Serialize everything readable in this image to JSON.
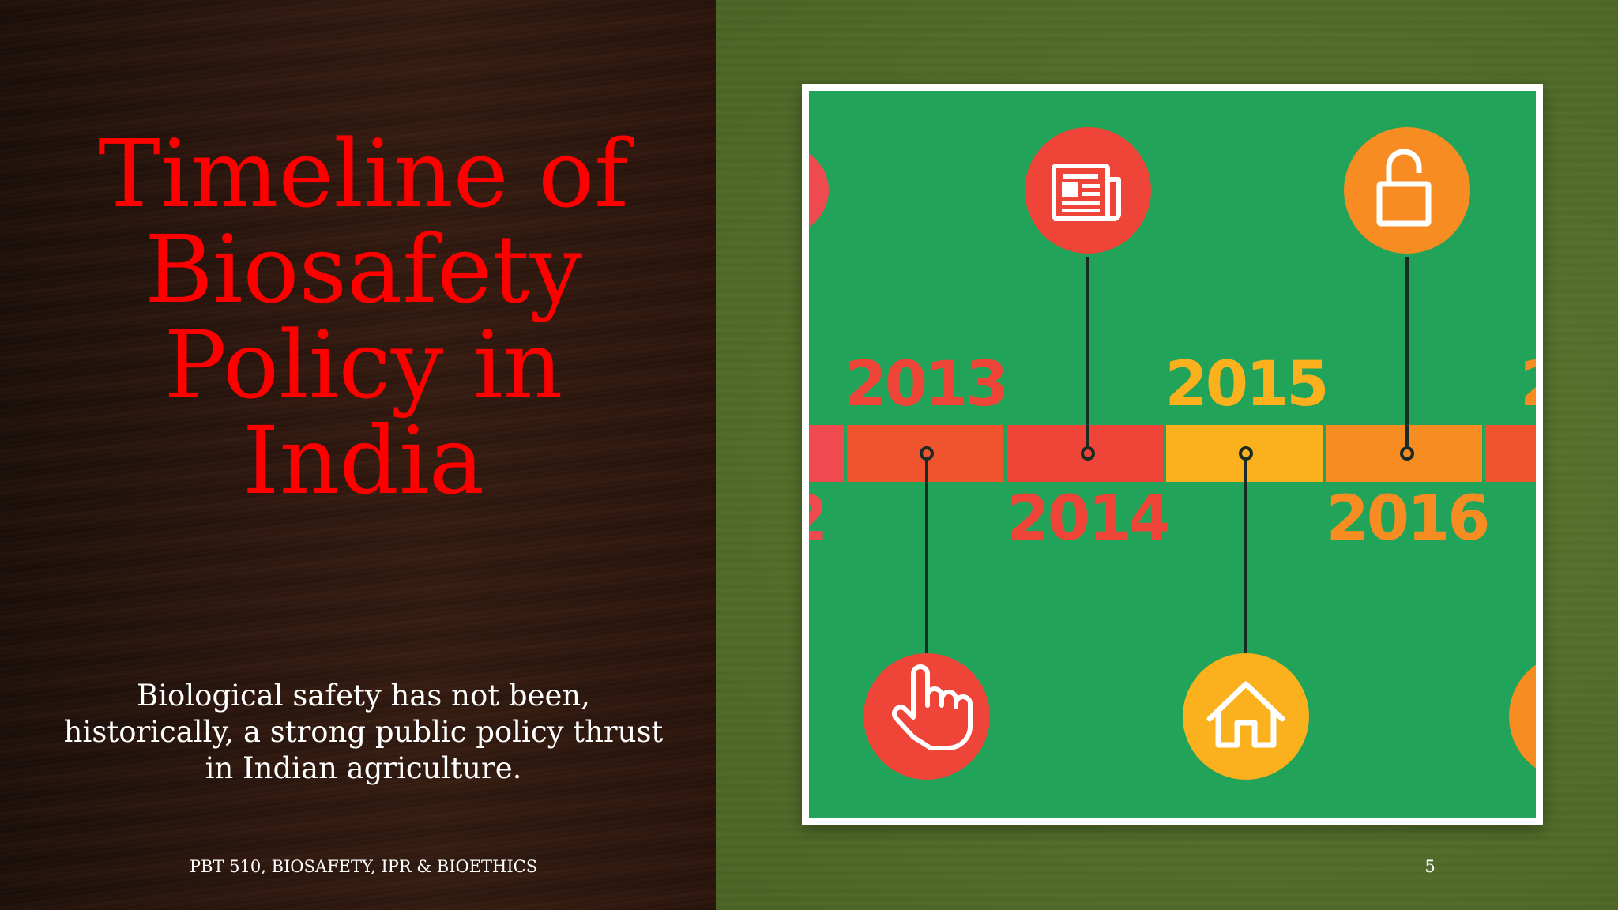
{
  "slide": {
    "title": "Timeline of Biosafety Policy in India",
    "subtitle": "Biological safety has not been, historically, a strong public policy thrust in Indian agriculture.",
    "footer": "PBT 510, BIOSAFETY, IPR & BIOETHICS",
    "page_number": "5"
  },
  "timeline": {
    "years_top": [
      "2013",
      "2015",
      "2"
    ],
    "years_bottom": [
      "2",
      "2014",
      "2016"
    ],
    "icons": [
      "newspaper-icon",
      "unlock-icon",
      "hand-pointer-icon",
      "home-icon"
    ],
    "colors": {
      "background": "#22a35a",
      "red": "#ef4438",
      "orange_red": "#f0542f",
      "amber": "#fbb01e",
      "orange": "#f68c22",
      "title_red": "#ff0000"
    }
  }
}
